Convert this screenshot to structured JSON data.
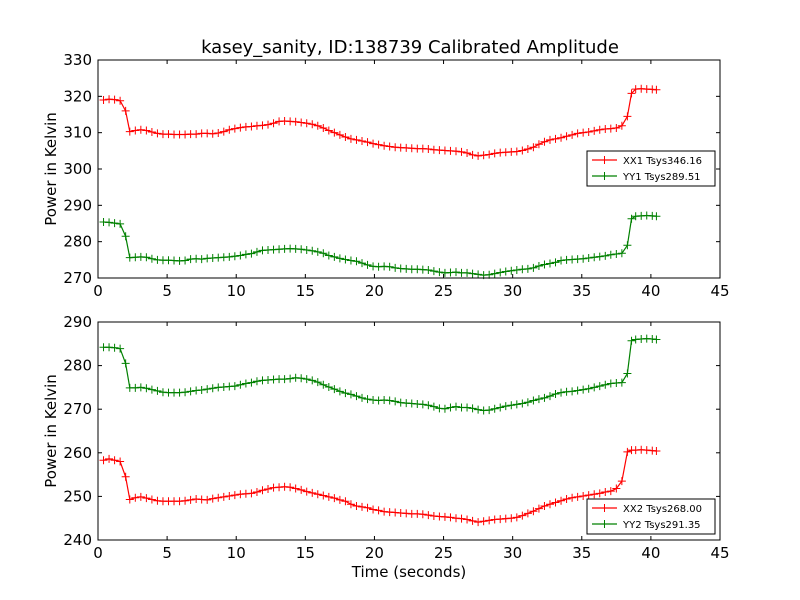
{
  "chart_data": [
    {
      "type": "line",
      "title": "kasey_sanity, ID:138739 Calibrated Amplitude",
      "xlabel": "",
      "ylabel": "Power in Kelvin",
      "xlim": [
        0,
        45
      ],
      "ylim": [
        270,
        330
      ],
      "xticks": [
        "0",
        "5",
        "10",
        "15",
        "20",
        "25",
        "30",
        "35",
        "40",
        "45"
      ],
      "yticks": [
        "270",
        "280",
        "290",
        "300",
        "310",
        "320",
        "330"
      ],
      "grid": false,
      "legend": "center-right",
      "series": [
        {
          "name": "XX1 Tsys346.16",
          "color": "#ff0000",
          "x": [
            0.4,
            0.8,
            1.2,
            1.6,
            2.0,
            2.3,
            2.7,
            3.1,
            3.5,
            3.9,
            4.3,
            4.7,
            5.1,
            5.5,
            5.9,
            6.3,
            6.7,
            7.1,
            7.5,
            7.9,
            8.3,
            8.7,
            9.1,
            9.5,
            9.9,
            10.3,
            10.7,
            11.1,
            11.5,
            11.9,
            12.3,
            12.7,
            13.1,
            13.5,
            13.9,
            14.3,
            14.7,
            15.1,
            15.5,
            15.9,
            16.3,
            16.7,
            17.1,
            17.5,
            17.9,
            18.3,
            18.7,
            19.1,
            19.5,
            19.9,
            20.3,
            20.7,
            21.1,
            21.5,
            21.9,
            22.3,
            22.7,
            23.1,
            23.5,
            23.9,
            24.3,
            24.7,
            25.1,
            25.5,
            25.9,
            26.3,
            26.7,
            27.1,
            27.5,
            27.9,
            28.3,
            28.7,
            29.1,
            29.5,
            29.9,
            30.3,
            30.7,
            31.1,
            31.5,
            31.9,
            32.3,
            32.7,
            33.1,
            33.5,
            33.9,
            34.3,
            34.7,
            35.1,
            35.5,
            35.9,
            36.3,
            36.7,
            37.1,
            37.5,
            37.9,
            38.3,
            38.6,
            38.9,
            39.3,
            39.7,
            40.1,
            40.4
          ],
          "y": [
            319,
            319.2,
            319.1,
            318.8,
            316,
            310.3,
            310.6,
            310.8,
            310.6,
            310.2,
            309.8,
            309.6,
            309.6,
            309.5,
            309.5,
            309.5,
            309.6,
            309.6,
            309.8,
            309.8,
            309.7,
            309.9,
            310.3,
            310.8,
            311.1,
            311.4,
            311.6,
            311.7,
            311.9,
            312.0,
            312.2,
            312.6,
            313.1,
            313.2,
            313.1,
            313.0,
            312.8,
            312.6,
            312.3,
            311.9,
            311.3,
            310.6,
            310.0,
            309.4,
            308.8,
            308.3,
            308.0,
            307.7,
            307.4,
            307.0,
            306.7,
            306.4,
            306.2,
            306.0,
            305.9,
            305.8,
            305.7,
            305.6,
            305.6,
            305.5,
            305.3,
            305.2,
            305.1,
            305.0,
            304.9,
            304.7,
            304.4,
            303.9,
            303.6,
            303.8,
            304.0,
            304.3,
            304.5,
            304.6,
            304.7,
            304.8,
            305.1,
            305.5,
            306.0,
            306.8,
            307.5,
            308.0,
            308.3,
            308.6,
            309.0,
            309.4,
            309.8,
            310.0,
            310.2,
            310.5,
            310.8,
            311.0,
            311.1,
            311.3,
            311.9,
            314.5,
            320.8,
            322.0,
            322.1,
            322.0,
            321.9,
            321.8
          ]
        },
        {
          "name": "YY1 Tsys289.51",
          "color": "#008000",
          "x": [
            0.4,
            0.8,
            1.2,
            1.6,
            2.0,
            2.3,
            2.7,
            3.1,
            3.5,
            3.9,
            4.3,
            4.7,
            5.1,
            5.5,
            5.9,
            6.3,
            6.7,
            7.1,
            7.5,
            7.9,
            8.3,
            8.7,
            9.1,
            9.5,
            9.9,
            10.3,
            10.7,
            11.1,
            11.5,
            11.9,
            12.3,
            12.7,
            13.1,
            13.5,
            13.9,
            14.3,
            14.7,
            15.1,
            15.5,
            15.9,
            16.3,
            16.7,
            17.1,
            17.5,
            17.9,
            18.3,
            18.7,
            19.1,
            19.5,
            19.9,
            20.3,
            20.7,
            21.1,
            21.5,
            21.9,
            22.3,
            22.7,
            23.1,
            23.5,
            23.9,
            24.3,
            24.7,
            25.1,
            25.5,
            25.9,
            26.3,
            26.7,
            27.1,
            27.5,
            27.9,
            28.3,
            28.7,
            29.1,
            29.5,
            29.9,
            30.3,
            30.7,
            31.1,
            31.5,
            31.9,
            32.3,
            32.7,
            33.1,
            33.5,
            33.9,
            34.3,
            34.7,
            35.1,
            35.5,
            35.9,
            36.3,
            36.7,
            37.1,
            37.5,
            37.9,
            38.3,
            38.6,
            38.9,
            39.3,
            39.7,
            40.1,
            40.4
          ],
          "y": [
            285.4,
            285.3,
            285.1,
            284.9,
            281.5,
            275.6,
            275.7,
            275.8,
            275.7,
            275.3,
            275.0,
            274.9,
            274.9,
            274.8,
            274.7,
            274.8,
            275.2,
            275.3,
            275.2,
            275.4,
            275.5,
            275.6,
            275.7,
            275.8,
            276.0,
            276.2,
            276.5,
            276.7,
            277.2,
            277.6,
            277.7,
            277.8,
            277.9,
            278.0,
            278.1,
            278.0,
            277.9,
            277.7,
            277.5,
            277.2,
            276.8,
            276.2,
            275.8,
            275.4,
            275.1,
            274.8,
            274.6,
            274.1,
            273.6,
            273.2,
            273.1,
            273.2,
            273.1,
            272.8,
            272.6,
            272.5,
            272.4,
            272.4,
            272.3,
            272.2,
            271.9,
            271.6,
            271.4,
            271.5,
            271.6,
            271.4,
            271.4,
            271.2,
            271.0,
            270.8,
            270.9,
            271.2,
            271.5,
            271.8,
            272.0,
            272.2,
            272.4,
            272.5,
            272.8,
            273.3,
            273.7,
            274.0,
            274.3,
            274.8,
            275.0,
            275.1,
            275.2,
            275.3,
            275.5,
            275.7,
            275.9,
            276.1,
            276.4,
            276.6,
            276.8,
            279.0,
            286.3,
            287.0,
            287.1,
            287.2,
            287.1,
            287.0
          ]
        }
      ]
    },
    {
      "type": "line",
      "title": "",
      "xlabel": "Time (seconds)",
      "ylabel": "Power in Kelvin",
      "xlim": [
        0,
        45
      ],
      "ylim": [
        240,
        290
      ],
      "xticks": [
        "0",
        "5",
        "10",
        "15",
        "20",
        "25",
        "30",
        "35",
        "40",
        "45"
      ],
      "yticks": [
        "240",
        "250",
        "260",
        "270",
        "280",
        "290"
      ],
      "grid": false,
      "legend": "bottom-right",
      "series": [
        {
          "name": "XX2 Tsys268.00",
          "color": "#ff0000",
          "x": [
            0.4,
            0.8,
            1.2,
            1.6,
            2.0,
            2.3,
            2.7,
            3.1,
            3.5,
            3.9,
            4.3,
            4.7,
            5.1,
            5.5,
            5.9,
            6.3,
            6.7,
            7.1,
            7.5,
            7.9,
            8.3,
            8.7,
            9.1,
            9.5,
            9.9,
            10.3,
            10.7,
            11.1,
            11.5,
            11.9,
            12.3,
            12.7,
            13.1,
            13.5,
            13.9,
            14.3,
            14.7,
            15.1,
            15.5,
            15.9,
            16.3,
            16.7,
            17.1,
            17.5,
            17.9,
            18.3,
            18.7,
            19.1,
            19.5,
            19.9,
            20.3,
            20.7,
            21.1,
            21.5,
            21.9,
            22.3,
            22.7,
            23.1,
            23.5,
            23.9,
            24.3,
            24.7,
            25.1,
            25.5,
            25.9,
            26.3,
            26.7,
            27.1,
            27.5,
            27.9,
            28.3,
            28.7,
            29.1,
            29.5,
            29.9,
            30.3,
            30.7,
            31.1,
            31.5,
            31.9,
            32.3,
            32.7,
            33.1,
            33.5,
            33.9,
            34.3,
            34.7,
            35.1,
            35.5,
            35.9,
            36.3,
            36.7,
            37.1,
            37.5,
            37.9,
            38.3,
            38.6,
            38.9,
            39.3,
            39.7,
            40.1,
            40.4
          ],
          "y": [
            258.3,
            258.6,
            258.3,
            258.0,
            254.5,
            249.3,
            249.7,
            249.9,
            249.6,
            249.3,
            249.0,
            248.9,
            248.9,
            248.9,
            248.9,
            249.0,
            249.2,
            249.4,
            249.3,
            249.2,
            249.5,
            249.7,
            249.9,
            250.1,
            250.3,
            250.5,
            250.6,
            250.7,
            251.0,
            251.4,
            251.7,
            252.0,
            252.1,
            252.2,
            252.1,
            251.8,
            251.5,
            251.1,
            250.8,
            250.5,
            250.2,
            249.9,
            249.6,
            249.2,
            248.9,
            248.2,
            247.8,
            247.6,
            247.4,
            247.0,
            246.8,
            246.5,
            246.4,
            246.3,
            246.2,
            246.1,
            246.0,
            246.0,
            245.9,
            245.7,
            245.5,
            245.4,
            245.3,
            245.2,
            245.0,
            244.9,
            244.7,
            244.4,
            244.1,
            244.3,
            244.5,
            244.7,
            244.8,
            244.9,
            245.0,
            245.2,
            245.6,
            246.1,
            246.6,
            247.2,
            247.8,
            248.2,
            248.6,
            249.0,
            249.4,
            249.7,
            249.9,
            250.1,
            250.3,
            250.5,
            250.7,
            251.0,
            251.2,
            251.8,
            253.5,
            260.2,
            260.6,
            260.6,
            260.7,
            260.6,
            260.5,
            260.4
          ]
        },
        {
          "name": "YY2 Tsys291.35",
          "color": "#008000",
          "x": [
            0.4,
            0.8,
            1.2,
            1.6,
            2.0,
            2.3,
            2.7,
            3.1,
            3.5,
            3.9,
            4.3,
            4.7,
            5.1,
            5.5,
            5.9,
            6.3,
            6.7,
            7.1,
            7.5,
            7.9,
            8.3,
            8.7,
            9.1,
            9.5,
            9.9,
            10.3,
            10.7,
            11.1,
            11.5,
            11.9,
            12.3,
            12.7,
            13.1,
            13.5,
            13.9,
            14.3,
            14.7,
            15.1,
            15.5,
            15.9,
            16.3,
            16.7,
            17.1,
            17.5,
            17.9,
            18.3,
            18.7,
            19.1,
            19.5,
            19.9,
            20.3,
            20.7,
            21.1,
            21.5,
            21.9,
            22.3,
            22.7,
            23.1,
            23.5,
            23.9,
            24.3,
            24.7,
            25.1,
            25.5,
            25.9,
            26.3,
            26.7,
            27.1,
            27.5,
            27.9,
            28.3,
            28.7,
            29.1,
            29.5,
            29.9,
            30.3,
            30.7,
            31.1,
            31.5,
            31.9,
            32.3,
            32.7,
            33.1,
            33.5,
            33.9,
            34.3,
            34.7,
            35.1,
            35.5,
            35.9,
            36.3,
            36.7,
            37.1,
            37.5,
            37.9,
            38.3,
            38.6,
            38.9,
            39.3,
            39.7,
            40.1,
            40.4
          ],
          "y": [
            284.2,
            284.2,
            284.1,
            283.9,
            280.5,
            274.9,
            274.9,
            275.0,
            274.8,
            274.5,
            274.2,
            273.9,
            273.8,
            273.8,
            273.8,
            273.9,
            274.1,
            274.3,
            274.4,
            274.6,
            274.8,
            275.0,
            275.1,
            275.2,
            275.3,
            275.6,
            275.9,
            276.1,
            276.4,
            276.6,
            276.7,
            276.8,
            276.9,
            276.9,
            277.0,
            277.2,
            277.1,
            276.9,
            276.6,
            276.2,
            275.6,
            275.1,
            274.6,
            274.1,
            273.7,
            273.4,
            273.0,
            272.6,
            272.3,
            272.1,
            272.0,
            272.1,
            272.0,
            271.8,
            271.5,
            271.4,
            271.3,
            271.2,
            271.1,
            270.9,
            270.6,
            270.2,
            270.1,
            270.4,
            270.6,
            270.4,
            270.4,
            270.2,
            269.9,
            269.7,
            269.8,
            270.1,
            270.4,
            270.7,
            270.9,
            271.1,
            271.3,
            271.6,
            272.0,
            272.3,
            272.6,
            273.0,
            273.5,
            273.8,
            274.0,
            274.1,
            274.3,
            274.5,
            274.7,
            275.0,
            275.3,
            275.6,
            275.9,
            276.0,
            276.1,
            278.2,
            285.7,
            286.0,
            286.1,
            286.2,
            286.1,
            286.0
          ]
        }
      ]
    }
  ]
}
